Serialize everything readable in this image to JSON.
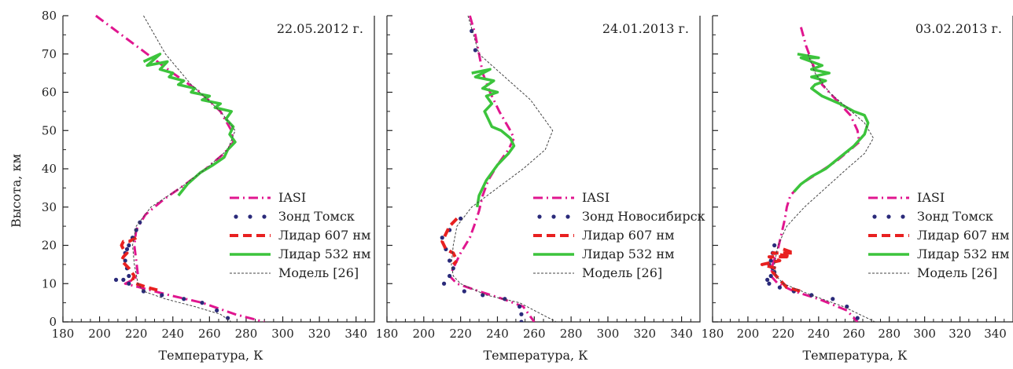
{
  "ylabel": "Высота, км",
  "chart_data": [
    {
      "type": "line",
      "title": "22.05.2012 г.",
      "xlabel": "Температура, К",
      "xlim": [
        180,
        350
      ],
      "ylim": [
        0,
        80
      ],
      "xticks": [
        "180",
        "200",
        "220",
        "240",
        "260",
        "280",
        "300",
        "320",
        "340"
      ],
      "yticks": [
        "0",
        "10",
        "20",
        "30",
        "40",
        "50",
        "60",
        "70",
        "80"
      ],
      "legend_position": "lower-right",
      "series": [
        {
          "name": "IASI",
          "style": "dashdot",
          "color": "#e0168f",
          "x": [
            198,
            212,
            226,
            240,
            255,
            266,
            272,
            273,
            268,
            258,
            247,
            235,
            225,
            220,
            219,
            220,
            221,
            218,
            214,
            222,
            238,
            256,
            274,
            290
          ],
          "y": [
            80,
            75,
            70,
            65,
            60,
            55,
            50,
            47,
            44,
            40,
            36,
            32,
            28,
            24,
            20,
            16,
            12,
            11,
            10,
            9,
            7,
            5,
            2,
            0
          ]
        },
        {
          "name": "Зонд Томск",
          "style": "dots",
          "color": "#2a2a7a",
          "x": [
            222,
            220,
            218,
            216,
            215,
            214,
            214,
            215,
            216,
            213,
            209,
            216,
            224,
            234,
            246,
            256,
            264,
            270
          ],
          "y": [
            26,
            24,
            22,
            20,
            19,
            18,
            16,
            14,
            12,
            11,
            11,
            10,
            8,
            7,
            6,
            5,
            3,
            1
          ]
        },
        {
          "name": "Лидар 607 нм",
          "style": "dashed",
          "color": "#e82020",
          "x": [
            220,
            216,
            213,
            212,
            213,
            215,
            213,
            212,
            214,
            216,
            219,
            218,
            220,
            226,
            234
          ],
          "y": [
            22,
            21,
            21,
            20,
            19,
            18,
            17,
            16,
            15,
            14,
            12,
            11,
            10,
            9,
            8
          ]
        },
        {
          "name": "Лидар 532 нм",
          "style": "solid",
          "color": "#3cc43c",
          "x": [
            224,
            233,
            226,
            237,
            233,
            240,
            238,
            246,
            243,
            252,
            250,
            260,
            256,
            266,
            263,
            272,
            269,
            273,
            271,
            274,
            270,
            268,
            262,
            255,
            248,
            243
          ],
          "y": [
            68,
            70,
            67,
            68,
            66,
            65,
            64,
            63,
            62,
            61,
            60,
            59,
            58,
            57,
            56,
            55,
            53,
            51,
            49,
            47,
            45,
            43,
            41,
            39,
            36,
            33
          ]
        },
        {
          "name": "Модель [26]",
          "style": "dotted-thin",
          "color": "#444444",
          "x": [
            224,
            236,
            250,
            266,
            274,
            270,
            258,
            244,
            228,
            220,
            218,
            219,
            221,
            224,
            236,
            252,
            266,
            272
          ],
          "y": [
            80,
            70,
            62,
            55,
            50,
            45,
            40,
            35,
            30,
            25,
            20,
            15,
            10,
            8,
            6,
            4,
            2,
            0
          ]
        }
      ]
    },
    {
      "type": "line",
      "title": "24.01.2013 г.",
      "xlabel": "Температура, К",
      "xlim": [
        180,
        350
      ],
      "ylim": [
        0,
        80
      ],
      "xticks": [
        "180",
        "200",
        "220",
        "240",
        "260",
        "280",
        "300",
        "320",
        "340"
      ],
      "yticks": [
        "0",
        "10",
        "20",
        "30",
        "40",
        "50",
        "60",
        "70",
        "80"
      ],
      "legend_position": "lower-right",
      "series": [
        {
          "name": "IASI",
          "style": "dashdot",
          "color": "#e0168f",
          "x": [
            225,
            228,
            230,
            232,
            236,
            241,
            247,
            249,
            246,
            240,
            235,
            232,
            230,
            228,
            225,
            220,
            216,
            214,
            218,
            230,
            243,
            254,
            260
          ],
          "y": [
            80,
            75,
            70,
            65,
            60,
            55,
            50,
            48,
            45,
            41,
            37,
            33,
            29,
            26,
            22,
            18,
            14,
            12,
            10,
            8,
            6,
            4,
            0
          ]
        },
        {
          "name": "Зонд Новосибирск",
          "style": "dots",
          "color": "#2a2a7a",
          "x": [
            226,
            228,
            220,
            214,
            210,
            212,
            214,
            216,
            214,
            211,
            222,
            232,
            244,
            252,
            253,
            253
          ],
          "y": [
            76,
            71,
            27,
            24,
            22,
            19,
            16,
            14,
            12,
            10,
            8,
            7,
            6,
            4,
            2,
            0
          ]
        },
        {
          "name": "Лидар 607 нм",
          "style": "dashed",
          "color": "#e82020",
          "x": [
            218,
            214,
            212,
            210,
            212,
            216,
            218,
            216
          ],
          "y": [
            27,
            25,
            23,
            21,
            19,
            18,
            16,
            15
          ]
        },
        {
          "name": "Лидар 532 нм",
          "style": "solid",
          "color": "#3cc43c",
          "x": [
            226,
            236,
            228,
            238,
            232,
            240,
            234,
            237,
            233,
            235,
            237,
            242,
            247,
            249,
            246,
            240,
            234,
            230,
            229
          ],
          "y": [
            65,
            66,
            64,
            63,
            61,
            60,
            59,
            57,
            55,
            53,
            51,
            50,
            48,
            46,
            44,
            41,
            37,
            33,
            30
          ]
        },
        {
          "name": "Модель [26]",
          "style": "dotted-thin",
          "color": "#444444",
          "x": [
            224,
            230,
            244,
            258,
            270,
            266,
            254,
            240,
            226,
            218,
            216,
            215,
            216,
            220,
            234,
            252,
            264,
            272
          ],
          "y": [
            80,
            70,
            64,
            58,
            50,
            45,
            40,
            35,
            30,
            25,
            20,
            15,
            12,
            10,
            7,
            5,
            2,
            0
          ]
        }
      ]
    },
    {
      "type": "line",
      "title": "03.02.2013 г.",
      "xlabel": "Температура, К",
      "xlim": [
        180,
        350
      ],
      "ylim": [
        0,
        80
      ],
      "xticks": [
        "180",
        "200",
        "220",
        "240",
        "260",
        "280",
        "300",
        "320",
        "340"
      ],
      "yticks": [
        "0",
        "10",
        "20",
        "30",
        "40",
        "50",
        "60",
        "70",
        "80"
      ],
      "legend_position": "lower-right",
      "series": [
        {
          "name": "IASI",
          "style": "dashdot",
          "color": "#e0168f",
          "x": [
            230,
            233,
            237,
            242,
            250,
            258,
            262,
            263,
            258,
            250,
            240,
            230,
            224,
            222,
            221,
            219,
            217,
            214,
            213,
            217,
            226,
            240,
            256,
            262
          ],
          "y": [
            77,
            72,
            67,
            62,
            58,
            54,
            50,
            47,
            45,
            42,
            39,
            36,
            33,
            30,
            27,
            23,
            19,
            15,
            12,
            10,
            8,
            6,
            3,
            0
          ]
        },
        {
          "name": "Зонд Томск",
          "style": "dots",
          "color": "#2a2a7a",
          "x": [
            215,
            214,
            213,
            212,
            214,
            215,
            213,
            211,
            212,
            218,
            226,
            236,
            248,
            256,
            262
          ],
          "y": [
            20,
            18,
            16,
            15,
            14,
            13,
            12,
            11,
            10,
            9,
            8,
            7,
            6,
            4,
            1
          ]
        },
        {
          "name": "Лидар 607 нм",
          "style": "dashed",
          "color": "#e82020",
          "x": [
            220,
            226,
            214,
            224,
            212,
            218,
            208,
            216,
            214,
            218,
            222,
            230
          ],
          "y": [
            19,
            18,
            18,
            17,
            17,
            16,
            15,
            14,
            13,
            11,
            9,
            8
          ]
        },
        {
          "name": "Лидар 532 нм",
          "style": "solid",
          "color": "#3cc43c",
          "x": [
            228,
            240,
            230,
            242,
            236,
            246,
            236,
            244,
            238,
            236,
            242,
            252,
            260,
            266,
            268,
            266,
            260,
            252,
            244,
            236,
            230,
            226
          ],
          "y": [
            70,
            69,
            69,
            67,
            66,
            65,
            64,
            63,
            62,
            61,
            59,
            57,
            55,
            54,
            52,
            49,
            46,
            43,
            40,
            38,
            36,
            34
          ]
        },
        {
          "name": "Модель [26]",
          "style": "dotted-thin",
          "color": "#444444",
          "x": [
            234,
            238,
            246,
            256,
            266,
            271,
            266,
            256,
            244,
            232,
            222,
            217,
            215,
            216,
            220,
            236,
            254,
            272
          ],
          "y": [
            70,
            65,
            60,
            56,
            52,
            48,
            44,
            40,
            35,
            30,
            25,
            20,
            15,
            12,
            10,
            7,
            4,
            0
          ]
        }
      ]
    }
  ]
}
